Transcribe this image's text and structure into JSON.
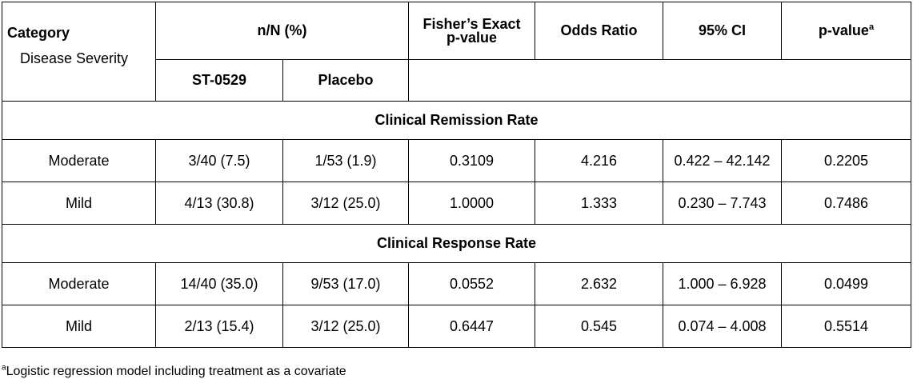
{
  "header": {
    "category": "Category",
    "disease_severity": "Disease Severity",
    "nN": "n/N (%)",
    "fisher_line1": "Fisher’s Exact",
    "fisher_line2": "p-value",
    "odds_ratio": "Odds Ratio",
    "ci": "95% CI",
    "pvalue": "p-value",
    "pvalue_sup": "a",
    "st0529": "ST-0529",
    "placebo": "Placebo"
  },
  "sections": [
    {
      "title": "Clinical Remission Rate",
      "rows": [
        {
          "severity": "Moderate",
          "st0529": "3/40 (7.5)",
          "placebo": "1/53 (1.9)",
          "fisher": "0.3109",
          "odds": "4.216",
          "ci": "0.422 – 42.142",
          "p": "0.2205"
        },
        {
          "severity": "Mild",
          "st0529": "4/13 (30.8)",
          "placebo": "3/12 (25.0)",
          "fisher": "1.0000",
          "odds": "1.333",
          "ci": "0.230 – 7.743",
          "p": "0.7486"
        }
      ]
    },
    {
      "title": "Clinical Response Rate",
      "rows": [
        {
          "severity": "Moderate",
          "st0529": "14/40 (35.0)",
          "placebo": "9/53 (17.0)",
          "fisher": "0.0552",
          "odds": "2.632",
          "ci": "1.000 – 6.928",
          "p": "0.0499"
        },
        {
          "severity": "Mild",
          "st0529": "2/13 (15.4)",
          "placebo": "3/12 (25.0)",
          "fisher": "0.6447",
          "odds": "0.545",
          "ci": "0.074 – 4.008",
          "p": "0.5514"
        }
      ]
    }
  ],
  "footnote": {
    "sup": "a",
    "text": "Logistic regression model including treatment as a covariate"
  }
}
